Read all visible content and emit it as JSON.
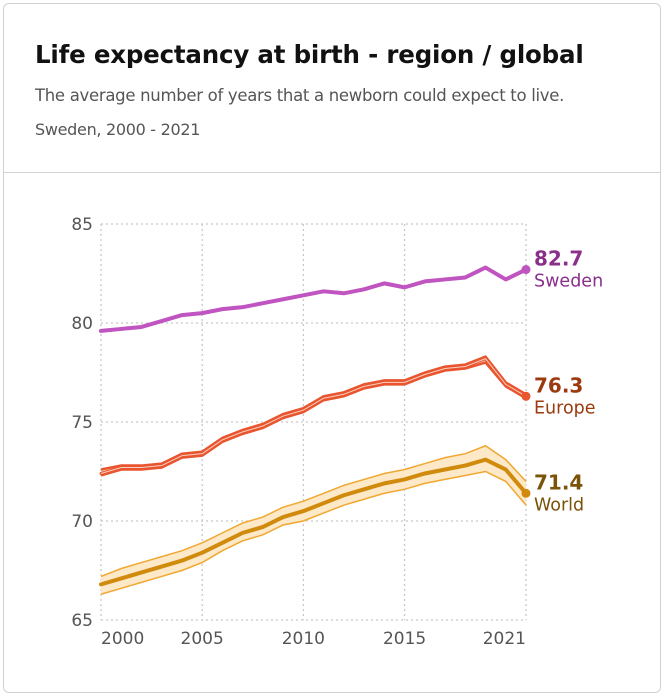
{
  "header": {
    "title": "Life expectancy at birth - region / global",
    "subtitle": "The average number of years that a newborn could expect to live.",
    "meta": "Sweden, 2000 - 2021"
  },
  "chart_data": {
    "type": "line",
    "title": "Life expectancy at birth - region / global",
    "subtitle": "The average number of years that a newborn could expect to live.",
    "xlabel": "",
    "ylabel": "",
    "x": [
      2000,
      2001,
      2002,
      2003,
      2004,
      2005,
      2006,
      2007,
      2008,
      2009,
      2010,
      2011,
      2012,
      2013,
      2014,
      2015,
      2016,
      2017,
      2018,
      2019,
      2020,
      2021
    ],
    "xlim": [
      2000,
      2021
    ],
    "ylim": [
      65,
      85
    ],
    "xticks": [
      "2000",
      "2005",
      "2010",
      "2015",
      "2021"
    ],
    "xtick_values": [
      2000,
      2005,
      2010,
      2015,
      2021
    ],
    "yticks": [
      "65",
      "70",
      "75",
      "80",
      "85"
    ],
    "ytick_values": [
      65,
      70,
      75,
      80,
      85
    ],
    "grid": true,
    "legend": "end-of-line labels (right)",
    "series": [
      {
        "name": "Sweden",
        "color": "#c054c0",
        "label_color": "#8a2f8a",
        "end_label": "82.7",
        "values": [
          79.6,
          79.7,
          79.8,
          80.1,
          80.4,
          80.5,
          80.7,
          80.8,
          81.0,
          81.2,
          81.4,
          81.6,
          81.5,
          81.7,
          82.0,
          81.8,
          82.1,
          82.2,
          82.3,
          82.8,
          82.2,
          82.7
        ]
      },
      {
        "name": "Europe",
        "color": "#e8552e",
        "label_color": "#9a3a0e",
        "end_label": "76.3",
        "values": [
          72.4,
          72.7,
          72.7,
          72.8,
          73.3,
          73.4,
          74.1,
          74.5,
          74.8,
          75.3,
          75.6,
          76.2,
          76.4,
          76.8,
          77.0,
          77.0,
          77.4,
          77.7,
          77.8,
          78.2,
          76.9,
          76.3
        ],
        "band_lower": [
          72.3,
          72.6,
          72.6,
          72.7,
          73.2,
          73.3,
          74.0,
          74.4,
          74.7,
          75.2,
          75.5,
          76.1,
          76.3,
          76.7,
          76.9,
          76.9,
          77.3,
          77.6,
          77.7,
          78.0,
          76.8,
          76.2
        ],
        "band_upper": [
          72.6,
          72.8,
          72.8,
          72.9,
          73.4,
          73.5,
          74.2,
          74.6,
          74.9,
          75.4,
          75.7,
          76.3,
          76.5,
          76.9,
          77.1,
          77.1,
          77.5,
          77.8,
          77.9,
          78.3,
          77.0,
          76.4
        ]
      },
      {
        "name": "World",
        "color": "#d08a0c",
        "label_color": "#7a5208",
        "band_color": "#fde8c8",
        "band_stroke": "#f0a830",
        "end_label": "71.4",
        "values": [
          66.8,
          67.1,
          67.4,
          67.7,
          68.0,
          68.4,
          68.9,
          69.4,
          69.7,
          70.2,
          70.5,
          70.9,
          71.3,
          71.6,
          71.9,
          72.1,
          72.4,
          72.6,
          72.8,
          73.1,
          72.6,
          71.4
        ],
        "band_lower": [
          66.3,
          66.6,
          66.9,
          67.2,
          67.5,
          67.9,
          68.5,
          69.0,
          69.3,
          69.8,
          70.0,
          70.4,
          70.8,
          71.1,
          71.4,
          71.6,
          71.9,
          72.1,
          72.3,
          72.5,
          72.0,
          70.8
        ],
        "band_upper": [
          67.2,
          67.6,
          67.9,
          68.2,
          68.5,
          68.9,
          69.4,
          69.9,
          70.2,
          70.7,
          71.0,
          71.4,
          71.8,
          72.1,
          72.4,
          72.6,
          72.9,
          73.2,
          73.4,
          73.8,
          73.1,
          72.0
        ]
      }
    ]
  }
}
